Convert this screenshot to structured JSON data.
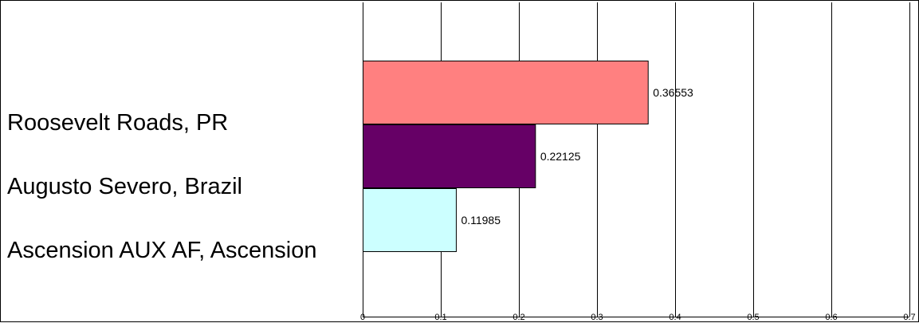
{
  "chart_data": {
    "type": "bar",
    "orientation": "horizontal",
    "categories": [
      "Roosevelt Roads, PR",
      "Augusto Severo, Brazil",
      "Ascension AUX AF, Ascension"
    ],
    "values": [
      0.36553,
      0.22125,
      0.11985
    ],
    "data_labels": [
      "0.36553",
      "0.22125",
      "0.11985"
    ],
    "xlim": [
      0,
      0.7
    ],
    "x_ticks": [
      0,
      0.1,
      0.2,
      0.3,
      0.4,
      0.5,
      0.6,
      0.7
    ],
    "x_tick_labels": [
      "0",
      "0.1",
      "0.2",
      "0.3",
      "0.4",
      "0.5",
      "0.6",
      "0.7"
    ],
    "bar_colors": [
      "#ff8080",
      "#660066",
      "#ccffff"
    ],
    "grid": true,
    "legend": "none"
  }
}
